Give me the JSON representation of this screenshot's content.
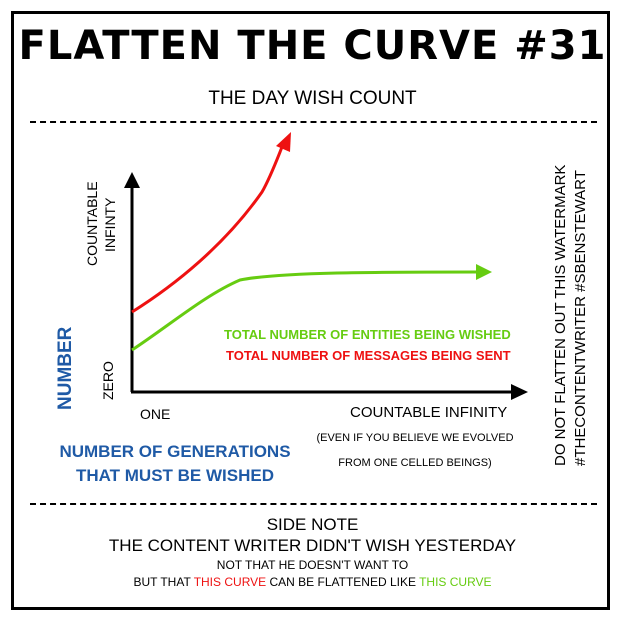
{
  "header": {
    "title": "FLATTEN THE CURVE #31",
    "subtitle": "THE DAY WISH COUNT"
  },
  "chart_data": {
    "type": "line",
    "y_axis": {
      "top_label_line1": "COUNTABLE",
      "top_label_line2": "INFINTY",
      "bottom_tick": "ZERO",
      "title": "NUMBER"
    },
    "x_axis": {
      "start_tick": "ONE",
      "end_label": "COUNTABLE INFINITY",
      "note_line1": "(EVEN IF YOU BELIEVE WE EVOLVED",
      "note_line2": "FROM ONE CELLED BEINGS)",
      "title_line1": "NUMBER OF GENERATIONS",
      "title_line2": "THAT MUST BE WISHED"
    },
    "series": [
      {
        "name": "TOTAL NUMBER OF ENTITIES BEING WISHED",
        "color": "#66cc11",
        "shape": "rises then flattens into a plateau, continuing toward countable infinity"
      },
      {
        "name": "TOTAL NUMBER OF MESSAGES BEING SENT",
        "color": "#ee1111",
        "shape": "starts higher and keeps rising steeply toward countable infinity"
      }
    ],
    "legend_placement": "right, inside plot"
  },
  "watermark": {
    "line1": "DO NOT FLATTEN OUT THIS WATERMARK",
    "line2": "#THECONTENTWRITER #SBENSTEWART"
  },
  "side_note": {
    "heading": "SIDE NOTE",
    "line1": "THE CONTENT WRITER DIDN'T WISH YESTERDAY",
    "line2": "NOT THAT HE DOESN'T WANT TO",
    "line3_prefix": "BUT THAT ",
    "line3_red": "THIS CURVE",
    "line3_mid": " CAN BE FLATTENED LIKE ",
    "line3_green": "THIS CURVE"
  }
}
